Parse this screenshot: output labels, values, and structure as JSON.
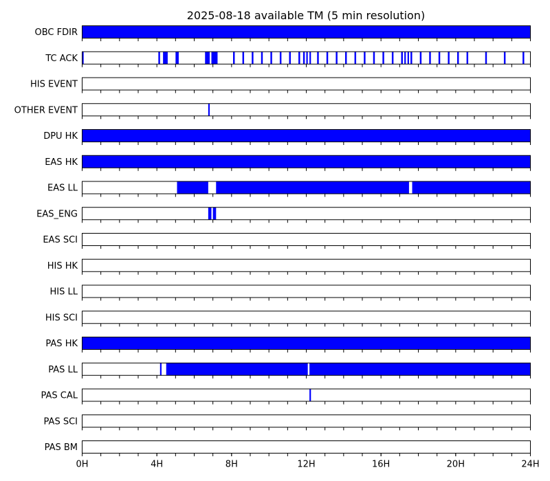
{
  "chart_data": {
    "type": "availability-timeline",
    "title": "2025-08-18 available TM (5 min resolution)",
    "x_unit": "hour",
    "xlim": [
      0,
      24
    ],
    "xticks": [
      {
        "value": 0,
        "label": "0H"
      },
      {
        "value": 4,
        "label": "4H"
      },
      {
        "value": 8,
        "label": "8H"
      },
      {
        "value": 12,
        "label": "12H"
      },
      {
        "value": 16,
        "label": "16H"
      },
      {
        "value": 20,
        "label": "20H"
      },
      {
        "value": 24,
        "label": "24H"
      }
    ],
    "minor_tick_step_hours": 1,
    "fill_color": "#0000ff",
    "rows": [
      {
        "label": "OBC FDIR",
        "intervals": [
          [
            0,
            24
          ]
        ]
      },
      {
        "label": "TC ACK",
        "intervals": [
          [
            0.0,
            0.08
          ],
          [
            4.08,
            4.17
          ],
          [
            4.33,
            4.58
          ],
          [
            5.0,
            5.17
          ],
          [
            6.58,
            6.83
          ],
          [
            6.92,
            7.25
          ],
          [
            8.08,
            8.17
          ],
          [
            8.58,
            8.67
          ],
          [
            9.08,
            9.17
          ],
          [
            9.58,
            9.67
          ],
          [
            10.08,
            10.17
          ],
          [
            10.58,
            10.67
          ],
          [
            11.08,
            11.17
          ],
          [
            11.58,
            11.67
          ],
          [
            11.83,
            11.92
          ],
          [
            12.0,
            12.08
          ],
          [
            12.17,
            12.25
          ],
          [
            12.58,
            12.67
          ],
          [
            13.08,
            13.17
          ],
          [
            13.58,
            13.67
          ],
          [
            14.08,
            14.17
          ],
          [
            14.58,
            14.67
          ],
          [
            15.08,
            15.17
          ],
          [
            15.58,
            15.67
          ],
          [
            16.08,
            16.17
          ],
          [
            16.58,
            16.67
          ],
          [
            17.08,
            17.17
          ],
          [
            17.25,
            17.33
          ],
          [
            17.42,
            17.5
          ],
          [
            17.58,
            17.67
          ],
          [
            18.08,
            18.17
          ],
          [
            18.58,
            18.67
          ],
          [
            19.08,
            19.17
          ],
          [
            19.58,
            19.67
          ],
          [
            20.08,
            20.17
          ],
          [
            20.58,
            20.67
          ],
          [
            21.58,
            21.67
          ],
          [
            22.58,
            22.67
          ],
          [
            23.58,
            23.67
          ]
        ]
      },
      {
        "label": "HIS EVENT",
        "intervals": []
      },
      {
        "label": "OTHER EVENT",
        "intervals": [
          [
            6.75,
            6.83
          ]
        ]
      },
      {
        "label": "DPU HK",
        "intervals": [
          [
            0,
            24
          ]
        ]
      },
      {
        "label": "EAS HK",
        "intervals": [
          [
            0,
            24
          ]
        ]
      },
      {
        "label": "EAS LL",
        "intervals": [
          [
            5.08,
            6.75
          ],
          [
            7.17,
            17.5
          ],
          [
            17.67,
            24
          ]
        ]
      },
      {
        "label": "EAS_ENG",
        "intervals": [
          [
            6.75,
            6.92
          ],
          [
            7.0,
            7.17
          ]
        ]
      },
      {
        "label": "EAS SCI",
        "intervals": []
      },
      {
        "label": "HIS HK",
        "intervals": []
      },
      {
        "label": "HIS LL",
        "intervals": []
      },
      {
        "label": "HIS SCI",
        "intervals": []
      },
      {
        "label": "PAS HK",
        "intervals": [
          [
            0,
            24
          ]
        ]
      },
      {
        "label": "PAS LL",
        "intervals": [
          [
            4.17,
            4.25
          ],
          [
            4.5,
            12.08
          ],
          [
            12.17,
            24
          ]
        ]
      },
      {
        "label": "PAS CAL",
        "intervals": [
          [
            12.17,
            12.25
          ]
        ]
      },
      {
        "label": "PAS SCI",
        "intervals": []
      },
      {
        "label": "PAS BM",
        "intervals": []
      }
    ]
  }
}
